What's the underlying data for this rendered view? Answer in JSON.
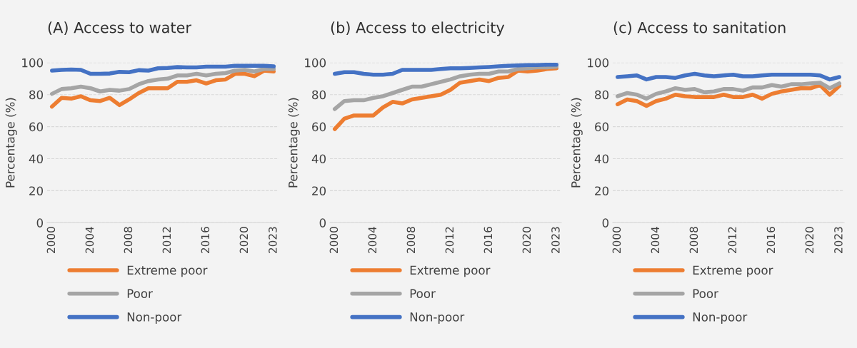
{
  "chart_data": [
    {
      "type": "line",
      "title": "(A) Access to water",
      "ylabel": "Percentage (%)",
      "categories": [
        "2000",
        null,
        null,
        null,
        "2004",
        null,
        null,
        null,
        "2008",
        null,
        null,
        null,
        "2012",
        null,
        null,
        null,
        "2016",
        null,
        null,
        null,
        "2020",
        null,
        null,
        "2023"
      ],
      "ylim": [
        0,
        100
      ],
      "yticks": [
        0,
        20,
        40,
        60,
        80,
        100
      ],
      "grid": "y",
      "legend": "bottom",
      "series": [
        {
          "name": "Extreme poor",
          "color": "#ed7d31",
          "values": [
            72.5,
            78,
            77.5,
            79,
            76.5,
            76,
            78,
            73.5,
            77,
            81,
            84,
            84,
            84,
            88,
            88,
            89,
            87,
            89,
            89.5,
            93,
            93,
            91.5,
            95,
            94.5
          ]
        },
        {
          "name": "Poor",
          "color": "#a5a5a5",
          "values": [
            80.5,
            83.5,
            84,
            85,
            84,
            82,
            83,
            82.5,
            83.5,
            86.5,
            88.5,
            89.5,
            90,
            92,
            92,
            93,
            92,
            93,
            93.5,
            95,
            95.5,
            94.5,
            96,
            96
          ]
        },
        {
          "name": "Non-poor",
          "color": "#4472c4",
          "values": [
            95,
            95.5,
            95.7,
            95.5,
            93,
            93,
            93.2,
            94.2,
            94,
            95.3,
            95,
            96.5,
            96.7,
            97.2,
            97,
            97,
            97.5,
            97.5,
            97.5,
            98,
            98,
            98,
            98,
            97.7
          ]
        }
      ]
    },
    {
      "type": "line",
      "title": "(b) Access to electricity",
      "ylabel": "Percentage (%)",
      "categories": [
        "2000",
        null,
        null,
        null,
        "2004",
        null,
        null,
        null,
        "2008",
        null,
        null,
        null,
        "2012",
        null,
        null,
        null,
        "2016",
        null,
        null,
        null,
        "2020",
        null,
        null,
        "2023"
      ],
      "ylim": [
        0,
        100
      ],
      "yticks": [
        0,
        20,
        40,
        60,
        80,
        100
      ],
      "grid": "y",
      "legend": "bottom",
      "series": [
        {
          "name": "Extreme poor",
          "color": "#ed7d31",
          "values": [
            58.5,
            65,
            67,
            67,
            67,
            72,
            75.5,
            74.5,
            77,
            78,
            79,
            80,
            83,
            87.5,
            88.5,
            89.5,
            88.5,
            90.5,
            91,
            95,
            94.5,
            95,
            96,
            96.5
          ]
        },
        {
          "name": "Poor",
          "color": "#a5a5a5",
          "values": [
            71,
            76,
            76.5,
            76.5,
            78,
            79,
            81,
            83,
            85,
            85,
            86.5,
            88,
            89.5,
            91.5,
            92.5,
            93,
            93,
            94.5,
            94.5,
            96,
            96.5,
            97,
            97,
            97.5
          ]
        },
        {
          "name": "Non-poor",
          "color": "#4472c4",
          "values": [
            93,
            94,
            94,
            93,
            92.5,
            92.5,
            93,
            95.5,
            95.5,
            95.5,
            95.5,
            96,
            96.5,
            96.5,
            96.7,
            97,
            97.3,
            97.7,
            98,
            98.3,
            98.5,
            98.5,
            98.7,
            98.7
          ]
        }
      ]
    },
    {
      "type": "line",
      "title": "(c) Access to sanitation",
      "ylabel": "Percentage (%)",
      "categories": [
        "2000",
        null,
        null,
        null,
        "2004",
        null,
        null,
        null,
        "2008",
        null,
        null,
        null,
        "2012",
        null,
        null,
        null,
        "2016",
        null,
        null,
        null,
        "2020",
        null,
        null,
        "2023"
      ],
      "ylim": [
        0,
        100
      ],
      "yticks": [
        0,
        20,
        40,
        60,
        80,
        100
      ],
      "grid": "y",
      "legend": "bottom",
      "series": [
        {
          "name": "Extreme poor",
          "color": "#ed7d31",
          "values": [
            74,
            77,
            76,
            73,
            76,
            77.5,
            80,
            79,
            78.5,
            78.5,
            78.5,
            80,
            78.5,
            78.5,
            80,
            77.5,
            80.5,
            82,
            83,
            84,
            84,
            86,
            80,
            85.5
          ]
        },
        {
          "name": "Poor",
          "color": "#a5a5a5",
          "values": [
            79,
            81,
            80,
            77.5,
            80.5,
            82,
            84,
            83,
            83.5,
            81.5,
            82,
            83.5,
            83.5,
            82.5,
            84.5,
            84.5,
            86,
            85,
            86.5,
            86.5,
            87,
            87.5,
            84,
            87
          ]
        },
        {
          "name": "Non-poor",
          "color": "#4472c4",
          "values": [
            91,
            91.5,
            92,
            89.5,
            91,
            91,
            90.5,
            92,
            93,
            92,
            91.5,
            92,
            92.5,
            91.5,
            91.5,
            92,
            92.5,
            92.5,
            92.5,
            92.5,
            92.5,
            92,
            89.5,
            91
          ]
        }
      ]
    }
  ]
}
